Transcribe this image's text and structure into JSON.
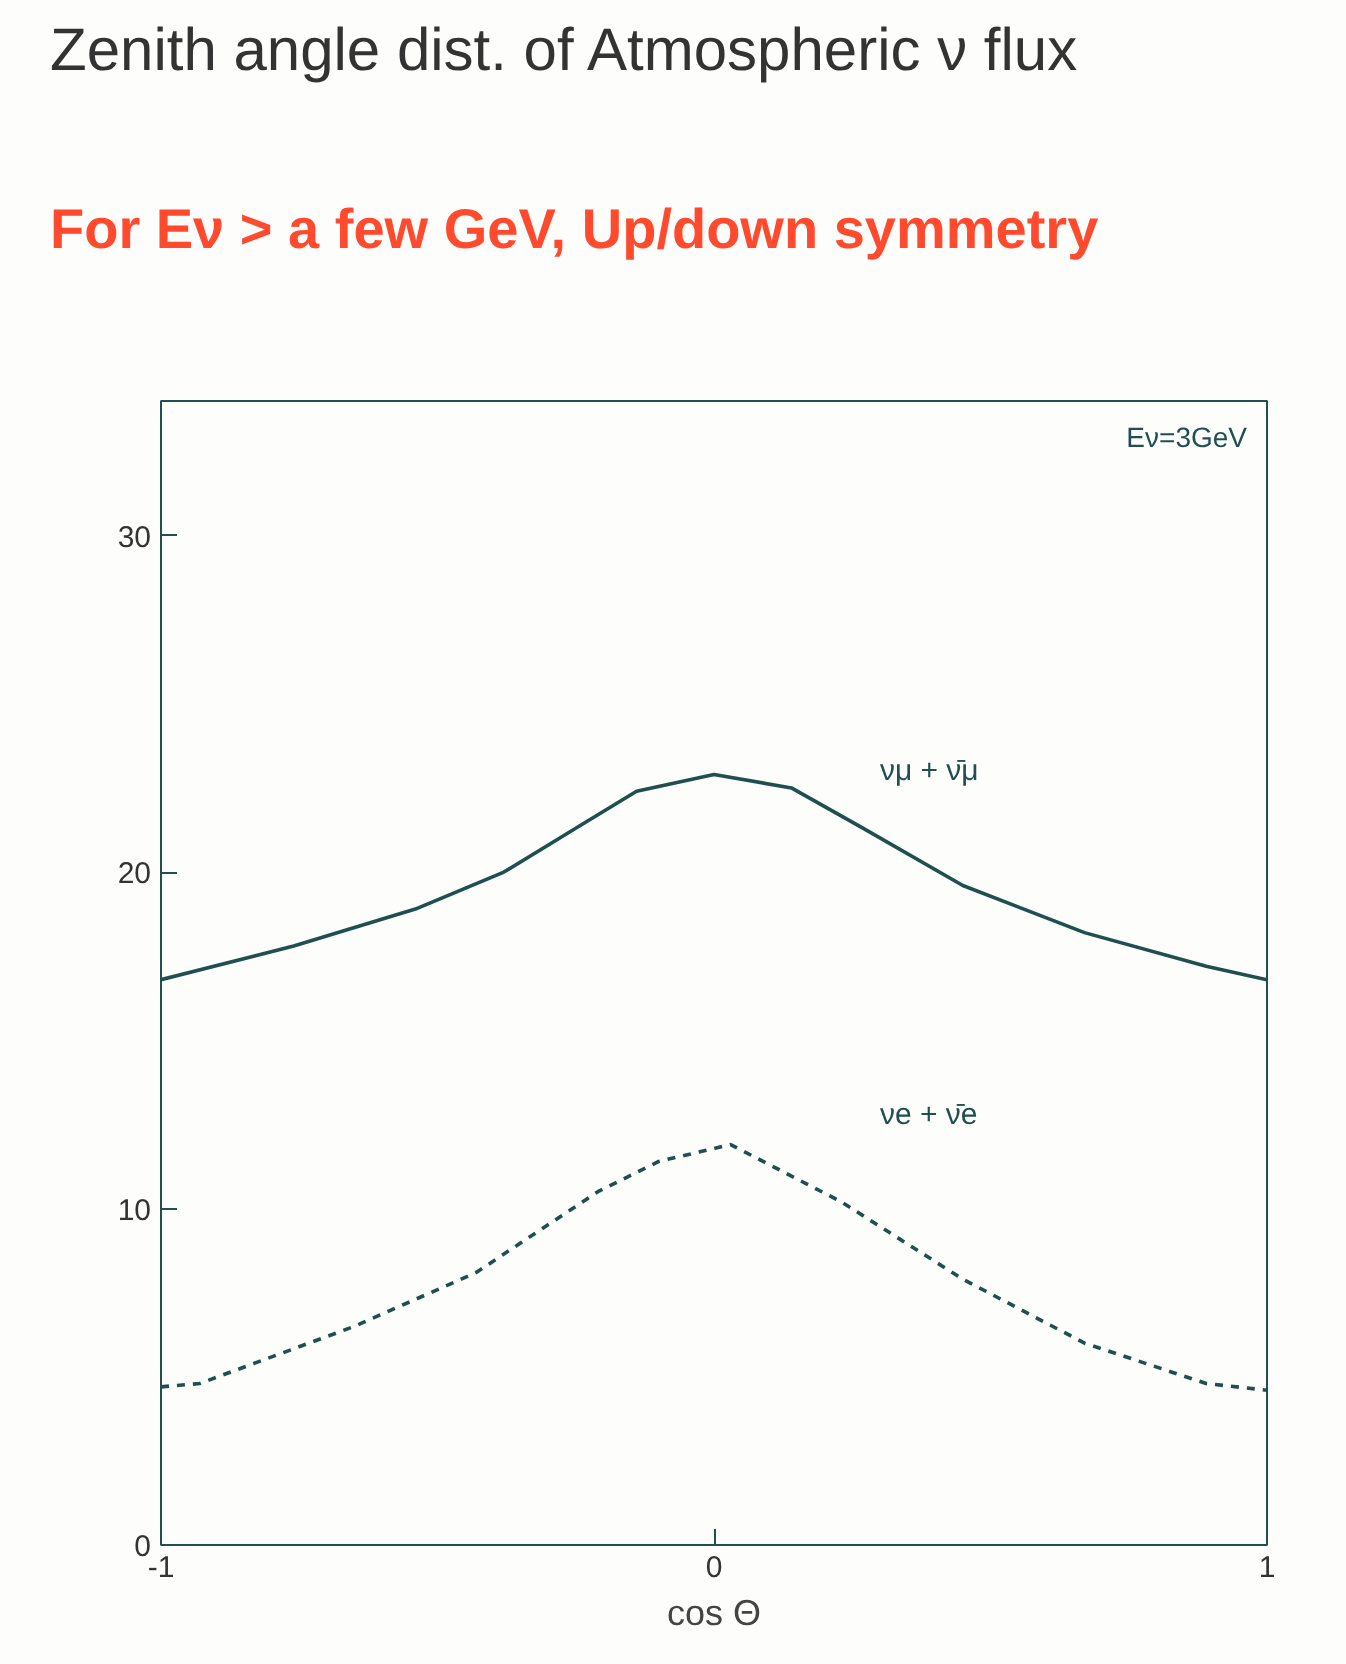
{
  "chart_data": {
    "type": "line",
    "title": "Zenith angle dist. of Atmospheric ν flux",
    "xlabel": "cos Θ",
    "annotations": [
      "For Eν > a few GeV, Up/down symmetry",
      "Eν=3GeV"
    ],
    "xlim": [
      -1,
      1
    ],
    "xticks": [
      -1,
      0,
      1
    ],
    "ylim": [
      0,
      34
    ],
    "yticks": [
      0,
      10,
      20,
      30
    ],
    "grid": false,
    "legend": false,
    "series": [
      {
        "name": "νμ + ν̄μ",
        "color": "#1f4f4f",
        "line_style": "solid",
        "x": [
          -1,
          -0.76,
          -0.54,
          -0.38,
          -0.25,
          -0.14,
          0,
          0.14,
          0.27,
          0.45,
          0.67,
          0.89,
          1
        ],
        "values": [
          16.8,
          17.8,
          18.9,
          20.0,
          21.3,
          22.4,
          22.9,
          22.5,
          21.3,
          19.6,
          18.2,
          17.2,
          16.8
        ]
      },
      {
        "name": "νe + ν̄e",
        "color": "#1f4f4f",
        "line_style": "dashed",
        "x": [
          -1,
          -0.93,
          -0.65,
          -0.43,
          -0.21,
          -0.1,
          0.03,
          0.23,
          0.45,
          0.67,
          0.89,
          1
        ],
        "values": [
          4.7,
          4.8,
          6.5,
          8.1,
          10.5,
          11.4,
          11.9,
          10.2,
          7.9,
          6.0,
          4.8,
          4.6
        ]
      }
    ]
  }
}
